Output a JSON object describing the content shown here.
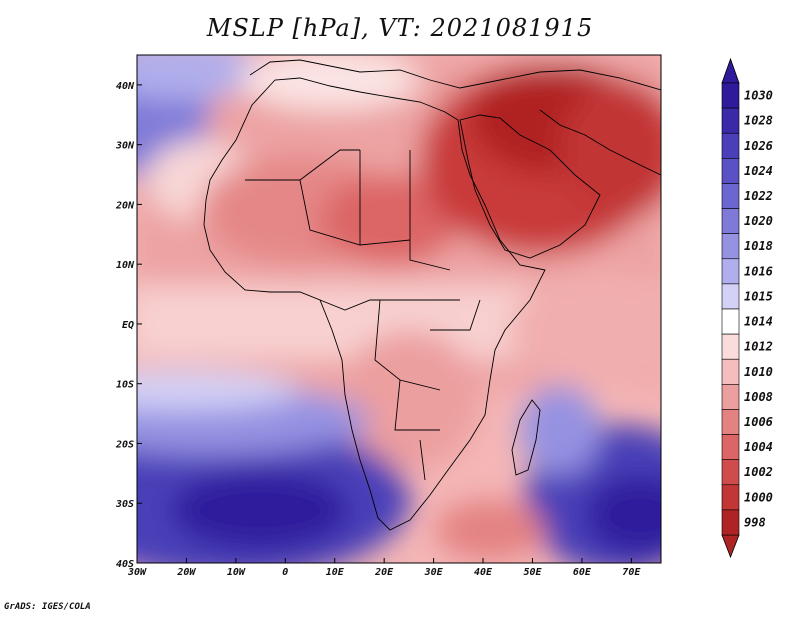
{
  "title": "MSLP [hPa], VT: 2021081915",
  "credit": "GrADS: IGES/COLA",
  "map": {
    "lon_range": [
      -30,
      76
    ],
    "lat_range": [
      -40,
      45
    ],
    "x_ticks": [
      {
        "value": -30,
        "label": "30W"
      },
      {
        "value": -20,
        "label": "20W"
      },
      {
        "value": -10,
        "label": "10W"
      },
      {
        "value": 0,
        "label": "0"
      },
      {
        "value": 10,
        "label": "10E"
      },
      {
        "value": 20,
        "label": "20E"
      },
      {
        "value": 30,
        "label": "30E"
      },
      {
        "value": 40,
        "label": "40E"
      },
      {
        "value": 50,
        "label": "50E"
      },
      {
        "value": 60,
        "label": "60E"
      },
      {
        "value": 70,
        "label": "70E"
      }
    ],
    "y_ticks": [
      {
        "value": 40,
        "label": "40N"
      },
      {
        "value": 30,
        "label": "30N"
      },
      {
        "value": 20,
        "label": "20N"
      },
      {
        "value": 10,
        "label": "10N"
      },
      {
        "value": 0,
        "label": "EQ"
      },
      {
        "value": -10,
        "label": "10S"
      },
      {
        "value": -20,
        "label": "20S"
      },
      {
        "value": -30,
        "label": "30S"
      },
      {
        "value": -40,
        "label": "40S"
      }
    ]
  },
  "colorbar": {
    "levels": [
      "1030",
      "1028",
      "1026",
      "1024",
      "1022",
      "1020",
      "1018",
      "1016",
      "1015",
      "1014",
      "1012",
      "1010",
      "1008",
      "1006",
      "1004",
      "1002",
      "1000",
      "998"
    ],
    "colors": [
      "#2f1a9c",
      "#3a2aa8",
      "#4a3fb8",
      "#5a52c4",
      "#6c66d0",
      "#7f7ad8",
      "#9592e2",
      "#b0aeec",
      "#d3d2f6",
      "#ffffff",
      "#fbdcdc",
      "#f5bdbd",
      "#ec9f9f",
      "#e48282",
      "#dc6565",
      "#d04c4c",
      "#c23636",
      "#ae2424"
    ]
  }
}
